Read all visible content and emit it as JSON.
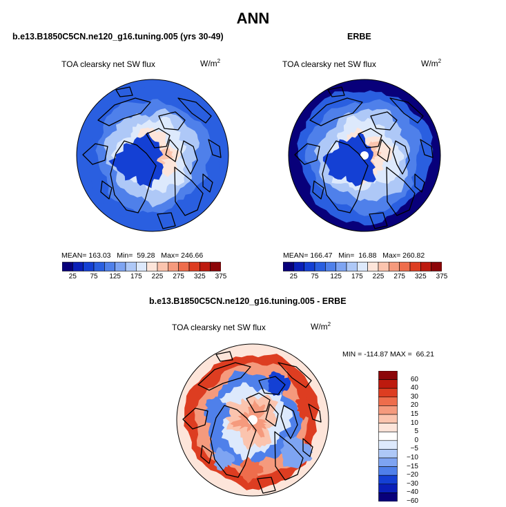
{
  "main_title": "ANN",
  "panels": [
    {
      "id": "model",
      "title": "b.e13.B1850C5CN.ne120_g16.tuning.005 (yrs 30-49)",
      "variable": "TOA clearsky net SW flux",
      "units_base": "W/m",
      "units_exp": "2",
      "stats": {
        "mean_label": "MEAN=",
        "mean": "163.03",
        "min_label": "Min=",
        "min": "59.28",
        "max_label": "Max=",
        "max": "246.66"
      }
    },
    {
      "id": "obs",
      "title": "ERBE",
      "variable": "TOA clearsky net SW flux",
      "units_base": "W/m",
      "units_exp": "2",
      "stats": {
        "mean_label": "MEAN=",
        "mean": "166.47",
        "min_label": "Min=",
        "min": "16.88",
        "max_label": "Max=",
        "max": "260.82"
      }
    },
    {
      "id": "diff",
      "title": "b.e13.B1850C5CN.ne120_g16.tuning.005 - ERBE",
      "variable": "TOA clearsky net SW flux",
      "units_base": "W/m",
      "units_exp": "2",
      "stats": {
        "min_label": "MIN =",
        "min": "-114.87",
        "max_label": "MAX =",
        "max": "66.21"
      }
    }
  ],
  "chart_data": [
    {
      "type": "heatmap",
      "projection": "north-polar-stereographic",
      "title": "b.e13.B1850C5CN.ne120_g16.tuning.005 (yrs 30-49)",
      "variable": "TOA clearsky net SW flux",
      "units": "W/m^2",
      "mean": 163.03,
      "min": 59.28,
      "max": 246.66,
      "colorbar_levels": [
        25,
        50,
        75,
        100,
        125,
        150,
        175,
        200,
        225,
        250,
        275,
        300,
        325,
        350,
        375
      ],
      "colorbar_labels": [
        "25",
        "75",
        "125",
        "175",
        "225",
        "275",
        "325",
        "375"
      ],
      "ring_values": [
        85,
        95,
        120,
        150,
        185,
        215,
        240
      ]
    },
    {
      "type": "heatmap",
      "projection": "north-polar-stereographic",
      "title": "ERBE",
      "variable": "TOA clearsky net SW flux",
      "units": "W/m^2",
      "mean": 166.47,
      "min": 16.88,
      "max": 260.82,
      "colorbar_levels": [
        25,
        50,
        75,
        100,
        125,
        150,
        175,
        200,
        225,
        250,
        275,
        300,
        325,
        350,
        375
      ],
      "colorbar_labels": [
        "25",
        "75",
        "125",
        "175",
        "225",
        "275",
        "325",
        "375"
      ],
      "ring_values": [
        20,
        80,
        110,
        150,
        190,
        220,
        245
      ]
    },
    {
      "type": "heatmap",
      "projection": "north-polar-stereographic",
      "title": "b.e13.B1850C5CN.ne120_g16.tuning.005 - ERBE",
      "variable": "TOA clearsky net SW flux",
      "units": "W/m^2",
      "min": -114.87,
      "max": 66.21,
      "colorbar_levels": [
        -60,
        -40,
        -30,
        -20,
        -15,
        -10,
        -5,
        0,
        5,
        10,
        15,
        20,
        30,
        40,
        60
      ],
      "colorbar_labels": [
        "60",
        "40",
        "30",
        "20",
        "15",
        "10",
        "5",
        "0",
        "−5",
        "−10",
        "−15",
        "−20",
        "−30",
        "−40",
        "−60"
      ],
      "ring_values": [
        0,
        25,
        12,
        -25,
        -10,
        6,
        10
      ]
    }
  ],
  "colors": {
    "seq": [
      "#08007a",
      "#0a1fb8",
      "#1440d4",
      "#2a5fe0",
      "#4f80ea",
      "#7ea4f2",
      "#aec8f7",
      "#dde9fc",
      "#fde5da",
      "#fbc4ae",
      "#f59a7d",
      "#ee6d4c",
      "#dd3d21",
      "#bd1a0e",
      "#8c0508"
    ],
    "div": [
      "#8c0508",
      "#bd1a0e",
      "#dd3d21",
      "#ee6d4c",
      "#f59a7d",
      "#fbc4ae",
      "#fde5da",
      "#ffffff",
      "#dde9fc",
      "#aec8f7",
      "#7ea4f2",
      "#4f80ea",
      "#1440d4",
      "#0a1fb8",
      "#08007a"
    ]
  }
}
